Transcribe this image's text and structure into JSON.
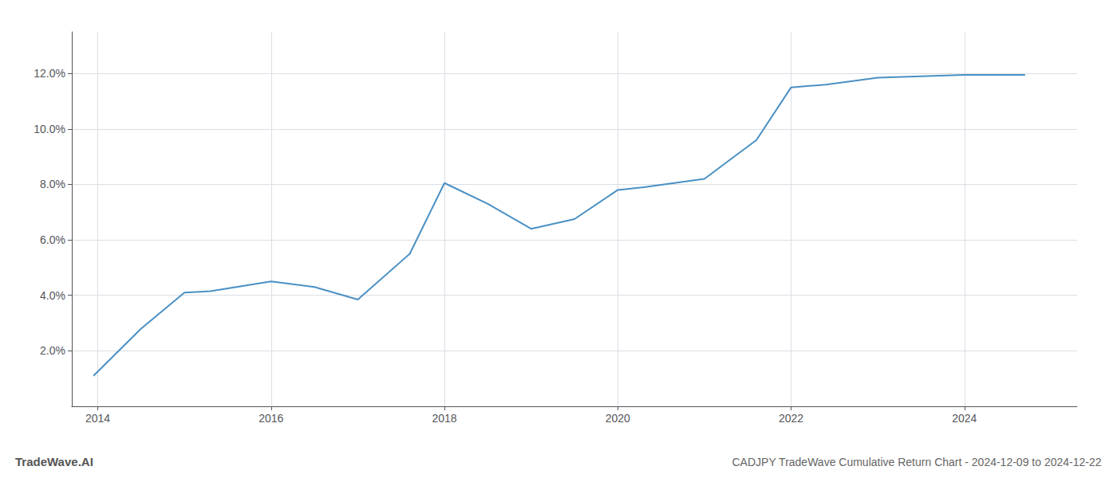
{
  "chart_data": {
    "type": "line",
    "title": "CADJPY TradeWave Cumulative Return Chart - 2024-12-09 to 2024-12-22",
    "annotations": [
      "TradeWave.AI"
    ],
    "x": [
      2013.95,
      2014.5,
      2015.0,
      2015.3,
      2016.0,
      2016.5,
      2017.0,
      2017.6,
      2018.0,
      2018.5,
      2019.0,
      2019.5,
      2020.0,
      2020.3,
      2021.0,
      2021.6,
      2022.0,
      2022.4,
      2023.0,
      2023.5,
      2024.0,
      2024.7
    ],
    "values": [
      1.1,
      2.8,
      4.1,
      4.15,
      4.5,
      4.3,
      3.85,
      5.5,
      8.05,
      7.3,
      6.4,
      6.75,
      7.8,
      7.9,
      8.2,
      9.6,
      11.5,
      11.6,
      11.85,
      11.9,
      11.95,
      11.95
    ],
    "color": "#4a90c4",
    "xlim": [
      2013.7,
      2025.3
    ],
    "xticks": [
      2014,
      2016,
      2018,
      2020,
      2022,
      2024
    ],
    "ylim": [
      0.0,
      13.5
    ],
    "yticks": [
      {
        "value": 2.0,
        "label": "2.0%"
      },
      {
        "value": 4.0,
        "label": "4.0%"
      },
      {
        "value": 6.0,
        "label": "6.0%"
      },
      {
        "value": 8.0,
        "label": "8.0%"
      },
      {
        "value": 10.0,
        "label": "10.0%"
      },
      {
        "value": 12.0,
        "label": "12.0%"
      }
    ],
    "grid": true
  }
}
